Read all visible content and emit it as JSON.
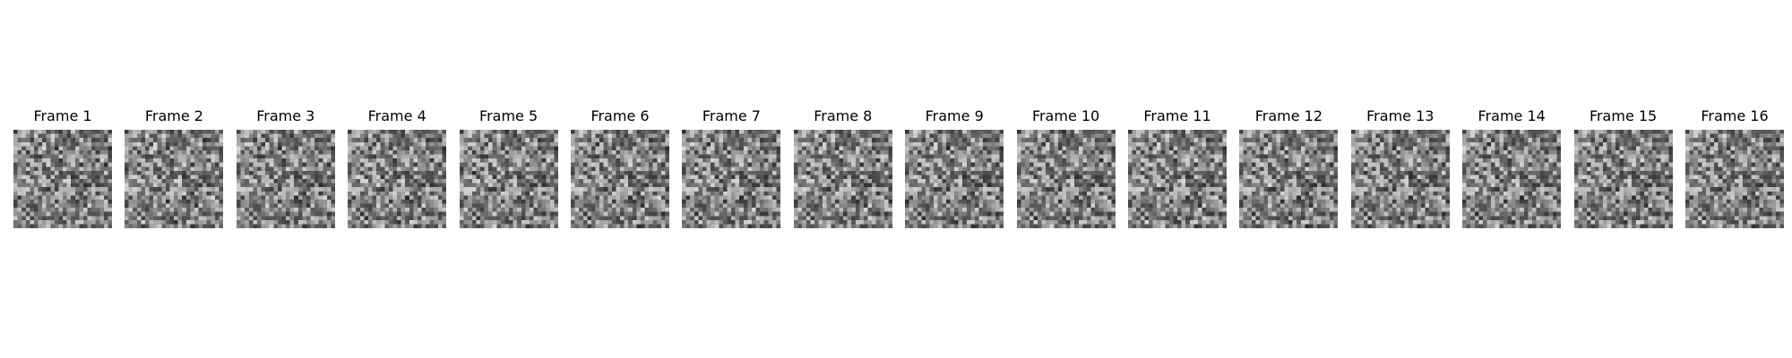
{
  "figure": {
    "frames": [
      {
        "title": "Frame 1"
      },
      {
        "title": "Frame 2"
      },
      {
        "title": "Frame 3"
      },
      {
        "title": "Frame 4"
      },
      {
        "title": "Frame 5"
      },
      {
        "title": "Frame 6"
      },
      {
        "title": "Frame 7"
      },
      {
        "title": "Frame 8"
      },
      {
        "title": "Frame 9"
      },
      {
        "title": "Frame 10"
      },
      {
        "title": "Frame 11"
      },
      {
        "title": "Frame 12"
      },
      {
        "title": "Frame 13"
      },
      {
        "title": "Frame 14"
      },
      {
        "title": "Frame 15"
      },
      {
        "title": "Frame 16"
      }
    ],
    "colormap": "gray",
    "grid": "off"
  }
}
